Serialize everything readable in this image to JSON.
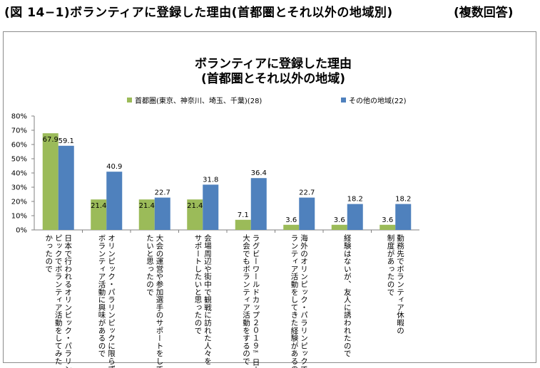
{
  "figure": {
    "heading": "(図 14−1)ボランティアに登録した理由(首都圏とそれ以外の地域別)",
    "note": "(複数回答)"
  },
  "colors": {
    "series1": "#9bbb59",
    "series2": "#4f81bd"
  },
  "chart_data": {
    "type": "bar",
    "title_lines": [
      "ボランティアに登録した理由",
      "(首都圏とそれ以外の地域)"
    ],
    "ylim": [
      0,
      80
    ],
    "yticks": [
      "0%",
      "10%",
      "20%",
      "30%",
      "40%",
      "50%",
      "60%",
      "70%",
      "80%"
    ],
    "grid": false,
    "legend_position": "top",
    "categories": [
      "日本で行われるオリンピック・パラリンピックでボランティア活動をしてみたかったので",
      "オリンピック・パラリンピックに限らず、ボランティア活動に興味があるので",
      "大会の運営や参加選手のサポートをしてみたいと思ったので",
      "会場周辺や街中で観戦に訪れた人々をサポートしたいと思ったので",
      "ラグビーワールドカップ２０１９™日本大会でもボランティア活動をするので",
      "海外のオリンピック・パラリンピックでボランティア活動をしてきた経験があるので",
      "経験はないが、友人に誘われたので",
      "勤務先でボランティア休暇の制度があったので"
    ],
    "category_lines": [
      [
        "日本で行われるオリンピック・パラリン",
        "ピックでボランティア活動をしてみた",
        "かったので"
      ],
      [
        "オリンピック・パラリンピックに限らず、",
        "ボランティア活動に興味があるので"
      ],
      [
        "大会の運営や参加選手のサポートをしてみ",
        "たいと思ったので"
      ],
      [
        "会場周辺や街中で観戦に訪れた人々を",
        "サポートしたいと思ったので"
      ],
      [
        "ラグビーワールドカップ２０１９™日本",
        "大会でもボランティア活動をするので"
      ],
      [
        "海外のオリンピック・パラリンピックでボ",
        "ランティア活動をしてきた経験があるので"
      ],
      [
        "経験はないが、友人に誘われたので"
      ],
      [
        "勤務先でボランティア休暇の",
        "制度があったので"
      ]
    ],
    "series": [
      {
        "name": "首都圏(東京、神奈川、埼玉、千葉)(28)",
        "values": [
          67.9,
          21.4,
          21.4,
          21.4,
          7.1,
          3.6,
          3.6,
          3.6
        ],
        "labels": [
          "67.9",
          "21.4",
          "21.4",
          "21.4",
          "7.1",
          "3.6",
          "3.6",
          "3.6"
        ]
      },
      {
        "name": "その他の地域(22)",
        "values": [
          59.1,
          40.9,
          22.7,
          31.8,
          36.4,
          22.7,
          18.2,
          18.2
        ],
        "labels": [
          "59.1",
          "40.9",
          "22.7",
          "31.8",
          "36.4",
          "22.7",
          "18.2",
          "18.2"
        ]
      }
    ]
  }
}
